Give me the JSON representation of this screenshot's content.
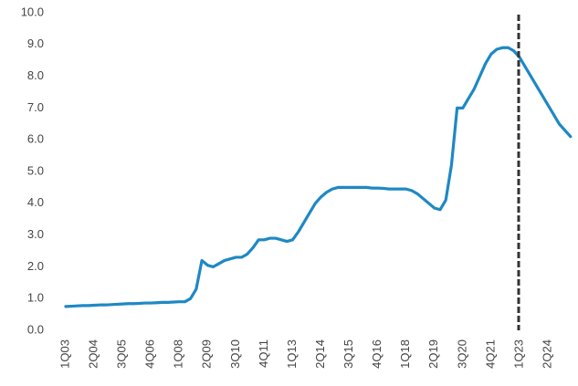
{
  "chart_data": {
    "type": "line",
    "categories": [
      "1Q03",
      null,
      null,
      null,
      null,
      "2Q04",
      null,
      null,
      null,
      null,
      "3Q05",
      null,
      null,
      null,
      null,
      "4Q06",
      null,
      null,
      null,
      null,
      "1Q08",
      null,
      null,
      null,
      null,
      "2Q09",
      null,
      null,
      null,
      null,
      "3Q10",
      null,
      null,
      null,
      null,
      "4Q11",
      null,
      null,
      null,
      null,
      "1Q13",
      null,
      null,
      null,
      null,
      "2Q14",
      null,
      null,
      null,
      null,
      "3Q15",
      null,
      null,
      null,
      null,
      "4Q16",
      null,
      null,
      null,
      null,
      "1Q18",
      null,
      null,
      null,
      null,
      "2Q19",
      null,
      null,
      null,
      null,
      "3Q20",
      null,
      null,
      null,
      null,
      "4Q21",
      null,
      null,
      null,
      null,
      "1Q23",
      null,
      null,
      null,
      null,
      "2Q24",
      null,
      null,
      null,
      null
    ],
    "values": [
      0.75,
      0.76,
      0.77,
      0.78,
      0.78,
      0.79,
      0.8,
      0.8,
      0.81,
      0.82,
      0.83,
      0.84,
      0.84,
      0.85,
      0.86,
      0.86,
      0.87,
      0.88,
      0.88,
      0.89,
      0.9,
      0.9,
      1.0,
      1.3,
      2.2,
      2.05,
      2.0,
      2.1,
      2.2,
      2.25,
      2.3,
      2.3,
      2.4,
      2.6,
      2.85,
      2.85,
      2.9,
      2.9,
      2.85,
      2.8,
      2.85,
      3.1,
      3.4,
      3.7,
      4.0,
      4.2,
      4.35,
      4.45,
      4.5,
      4.5,
      4.5,
      4.5,
      4.5,
      4.5,
      4.48,
      4.48,
      4.47,
      4.45,
      4.45,
      4.45,
      4.45,
      4.4,
      4.3,
      4.15,
      4.0,
      3.85,
      3.8,
      4.1,
      5.2,
      7.0,
      7.0,
      7.3,
      7.6,
      8.0,
      8.4,
      8.7,
      8.85,
      8.9,
      8.9,
      8.8,
      8.6,
      8.3,
      8.0,
      7.7,
      7.4,
      7.1,
      6.8,
      6.5,
      6.3,
      6.1
    ],
    "color": "#1f88c4",
    "ylim": [
      0,
      10
    ],
    "yticks": [
      {
        "value": 0,
        "label": "0.0"
      },
      {
        "value": 1,
        "label": "1.0"
      },
      {
        "value": 2,
        "label": "2.0"
      },
      {
        "value": 3,
        "label": "3.0"
      },
      {
        "value": 4,
        "label": "4.0"
      },
      {
        "value": 5,
        "label": "5.0"
      },
      {
        "value": 6,
        "label": "6.0"
      },
      {
        "value": 7,
        "label": "7.0"
      },
      {
        "value": 8,
        "label": "8.0"
      },
      {
        "value": 9,
        "label": "9.0"
      },
      {
        "value": 10,
        "label": "10.0"
      }
    ],
    "grid": false
  }
}
